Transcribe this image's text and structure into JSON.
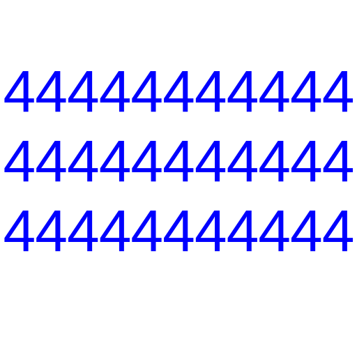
{
  "text_color": "#0000ff",
  "background_color": "#ffffff",
  "lines": [
    "44444444444",
    "44444444444",
    "44444444444"
  ]
}
